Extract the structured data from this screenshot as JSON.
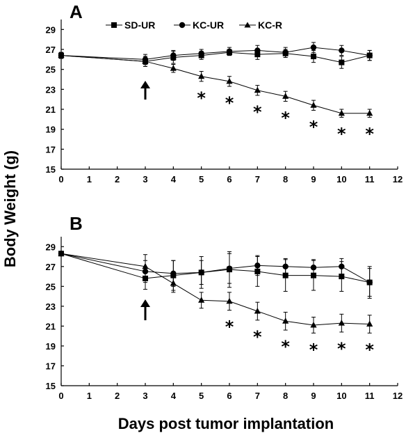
{
  "ylabel": "Body Weight (g)",
  "xlabel": "Days post tumor implantation",
  "colors": {
    "ink": "#000000",
    "background": "#ffffff"
  },
  "chart_data": [
    {
      "panel": "A",
      "type": "line",
      "xlim": [
        0,
        12
      ],
      "ylim": [
        15,
        30
      ],
      "x_ticks": [
        0,
        1,
        2,
        3,
        4,
        5,
        6,
        7,
        8,
        9,
        10,
        11,
        12
      ],
      "y_ticks": [
        15,
        17,
        19,
        21,
        23,
        25,
        27,
        29
      ],
      "legend": {
        "placement": "top",
        "entries": [
          "SD-UR",
          "KC-UR",
          "KC-R"
        ]
      },
      "series": [
        {
          "name": "SD-UR",
          "marker": "square",
          "x": [
            0,
            3,
            4,
            5,
            6,
            7,
            8,
            9,
            10,
            11
          ],
          "y": [
            26.4,
            25.8,
            26.2,
            26.4,
            26.7,
            26.5,
            26.6,
            26.3,
            25.7,
            26.4
          ],
          "err": [
            0.3,
            0.5,
            0.6,
            0.4,
            0.3,
            0.5,
            0.4,
            0.6,
            0.6,
            0.5
          ]
        },
        {
          "name": "KC-UR",
          "marker": "circle",
          "x": [
            0,
            3,
            4,
            5,
            6,
            7,
            8,
            9,
            10,
            11
          ],
          "y": [
            26.4,
            26.0,
            26.4,
            26.6,
            26.8,
            26.9,
            26.7,
            27.2,
            26.9,
            26.4
          ],
          "err": [
            0.3,
            0.5,
            0.5,
            0.4,
            0.4,
            0.5,
            0.5,
            0.5,
            0.5,
            0.5
          ]
        },
        {
          "name": "KC-R",
          "marker": "triangle",
          "x": [
            0,
            3,
            4,
            5,
            6,
            7,
            8,
            9,
            10,
            11
          ],
          "y": [
            26.4,
            25.8,
            25.1,
            24.3,
            23.8,
            22.9,
            22.3,
            21.4,
            20.6,
            20.6
          ],
          "err": [
            0.3,
            0.5,
            0.4,
            0.5,
            0.5,
            0.5,
            0.5,
            0.5,
            0.4,
            0.4
          ]
        }
      ],
      "annotations": {
        "arrow_at_day": 3,
        "significant_days": [
          5,
          6,
          7,
          8,
          9,
          10,
          11
        ]
      }
    },
    {
      "panel": "B",
      "type": "line",
      "xlim": [
        0,
        12
      ],
      "ylim": [
        15,
        30
      ],
      "x_ticks": [
        0,
        1,
        2,
        3,
        4,
        5,
        6,
        7,
        8,
        9,
        10,
        11,
        12
      ],
      "y_ticks": [
        15,
        17,
        19,
        21,
        23,
        25,
        27,
        29
      ],
      "series": [
        {
          "name": "SD-UR",
          "marker": "square",
          "x": [
            0,
            3,
            4,
            5,
            6,
            7,
            8,
            9,
            10,
            11
          ],
          "y": [
            28.3,
            25.8,
            26.1,
            26.4,
            26.7,
            26.5,
            26.1,
            26.1,
            26.0,
            25.4
          ],
          "err": [
            0.2,
            1.1,
            1.5,
            1.6,
            1.8,
            1.5,
            1.6,
            1.5,
            1.5,
            1.6
          ]
        },
        {
          "name": "KC-UR",
          "marker": "circle",
          "x": [
            0,
            3,
            4,
            5,
            6,
            7,
            8,
            9,
            10,
            11
          ],
          "y": [
            28.3,
            26.5,
            26.3,
            26.4,
            26.8,
            27.1,
            27.0,
            26.9,
            27.0,
            25.4
          ],
          "err": [
            0.2,
            1.1,
            1.3,
            1.2,
            1.5,
            1.0,
            0.8,
            0.8,
            0.8,
            1.4
          ]
        },
        {
          "name": "KC-R",
          "marker": "triangle",
          "x": [
            0,
            3,
            4,
            5,
            6,
            7,
            8,
            9,
            10,
            11
          ],
          "y": [
            28.3,
            27.0,
            25.3,
            23.6,
            23.5,
            22.5,
            21.5,
            21.1,
            21.3,
            21.2
          ],
          "err": [
            0.2,
            1.2,
            0.9,
            0.8,
            0.9,
            0.9,
            0.9,
            0.8,
            0.9,
            0.9
          ]
        }
      ],
      "annotations": {
        "arrow_at_day": 3,
        "significant_days": [
          6,
          7,
          8,
          9,
          10,
          11
        ]
      }
    }
  ]
}
